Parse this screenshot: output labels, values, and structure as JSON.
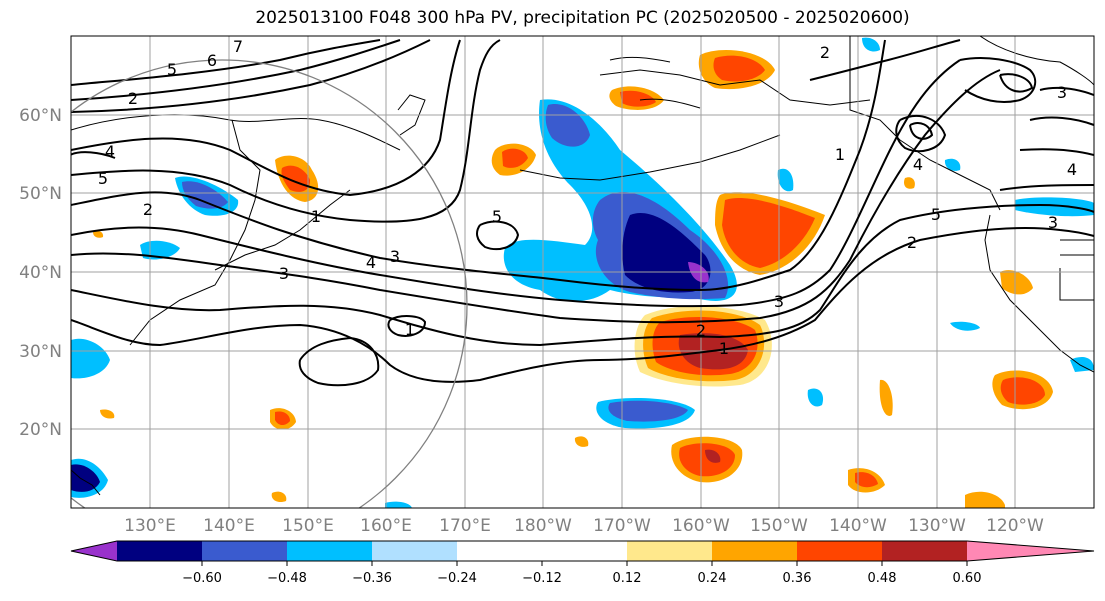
{
  "title": "2025013100 F048 300 hPa PV, precipitation PC (2025020500 - 2025020600)",
  "map": {
    "lon_range": [
      120,
      250
    ],
    "lat_range": [
      10,
      70
    ],
    "lat_labels": [
      "20°N",
      "30°N",
      "40°N",
      "50°N",
      "60°N"
    ],
    "lon_labels": [
      "130°E",
      "140°E",
      "150°E",
      "160°E",
      "170°E",
      "180°W",
      "170°W",
      "160°W",
      "150°W",
      "140°W",
      "130°W",
      "120°W"
    ],
    "pv_contour_labels": [
      "7",
      "6",
      "5",
      "2",
      "4",
      "5",
      "2",
      "1",
      "3",
      "4",
      "3",
      "5",
      "1",
      "2",
      "1",
      "3",
      "2",
      "3",
      "1",
      "4",
      "5",
      "2",
      "3",
      "4"
    ]
  },
  "colorbar": {
    "colors": [
      "#9932cc",
      "#000080",
      "#3a5bcf",
      "#00bfff",
      "#b0e0ff",
      "#ffffff",
      "#ffe88c",
      "#ffa500",
      "#ff4500",
      "#b22222",
      "#ff88b4"
    ],
    "ticks": [
      "−0.60",
      "−0.48",
      "−0.36",
      "−0.24",
      "−0.12",
      "0.12",
      "0.24",
      "0.36",
      "0.48",
      "0.60"
    ]
  }
}
